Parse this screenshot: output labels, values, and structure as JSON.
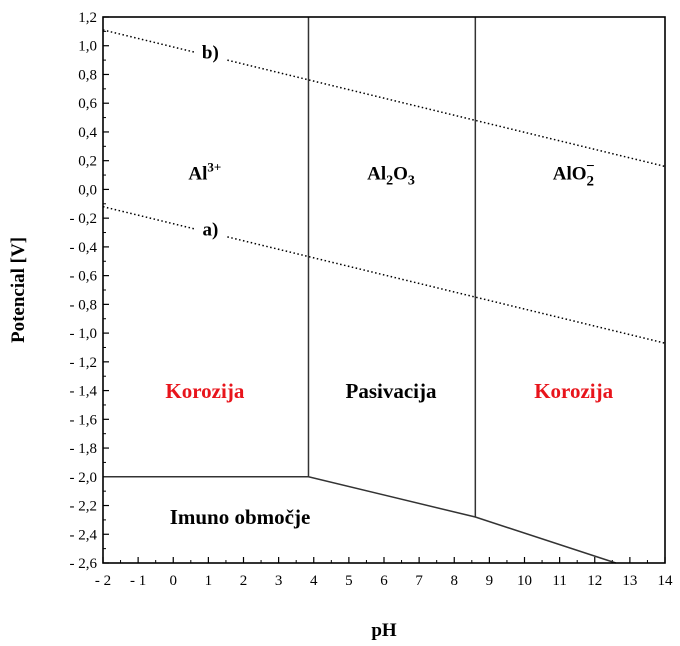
{
  "chart_data": {
    "type": "line",
    "xlabel": "pH",
    "ylabel": "Potencial [V]",
    "xlim": [
      -2,
      14
    ],
    "ylim": [
      -2.6,
      1.2
    ],
    "x_ticks": [
      -2,
      -1,
      0,
      1,
      2,
      3,
      4,
      5,
      6,
      7,
      8,
      9,
      10,
      11,
      12,
      13,
      14
    ],
    "x_tick_labels": [
      "- 2",
      "- 1",
      "0",
      "1",
      "2",
      "3",
      "4",
      "5",
      "6",
      "7",
      "8",
      "9",
      "10",
      "11",
      "12",
      "13",
      "14"
    ],
    "y_ticks": [
      1.2,
      1.0,
      0.8,
      0.6,
      0.4,
      0.2,
      0.0,
      -0.2,
      -0.4,
      -0.6,
      -0.8,
      -1.0,
      -1.2,
      -1.4,
      -1.6,
      -1.8,
      -2.0,
      -2.2,
      -2.4,
      -2.6
    ],
    "y_tick_labels": [
      "1,2",
      "1,0",
      "0,8",
      "0,6",
      "0,4",
      "0,2",
      "0,0",
      "- 0,2",
      "- 0,4",
      "- 0,6",
      "- 0,8",
      "- 1,0",
      "- 1,2",
      "- 1,4",
      "- 1,6",
      "- 1,8",
      "- 2,0",
      "- 2,2",
      "- 2,4",
      "- 2,6"
    ],
    "boundaries": [
      {
        "points": [
          [
            -2,
            -2.0
          ],
          [
            3.85,
            -2.0
          ],
          [
            8.6,
            -2.28
          ],
          [
            12.6,
            -2.6
          ]
        ]
      },
      {
        "points": [
          [
            3.85,
            -2.0
          ],
          [
            3.85,
            1.2
          ]
        ]
      },
      {
        "points": [
          [
            8.6,
            -2.28
          ],
          [
            8.6,
            1.2
          ]
        ]
      }
    ],
    "water_lines": [
      {
        "label": "a)",
        "style": "dotted",
        "points": [
          [
            -2,
            -0.12
          ],
          [
            14,
            -1.07
          ]
        ]
      },
      {
        "label": "b)",
        "style": "dotted",
        "points": [
          [
            -2,
            1.11
          ],
          [
            14,
            0.16
          ]
        ]
      }
    ],
    "species": [
      {
        "base": "Al",
        "sub": "",
        "sup": "3+",
        "x": 0.9,
        "y": 0.07
      },
      {
        "base": "Al",
        "sub": "2",
        "mid": "O",
        "sub2": "3",
        "x": 6.2,
        "y": 0.07
      },
      {
        "base": "AlO",
        "sub": "2",
        "sup": "−",
        "x": 11.4,
        "y": 0.07
      }
    ],
    "regions": [
      {
        "label": "Korozija",
        "color": "#e8141b",
        "x": 0.9,
        "y": -1.45
      },
      {
        "label": "Pasivacija",
        "color": "#000000",
        "x": 6.2,
        "y": -1.45
      },
      {
        "label": "Korozija",
        "color": "#e8141b",
        "x": 11.4,
        "y": -1.45
      },
      {
        "label": "Imuno območje",
        "color": "#000000",
        "x": 1.9,
        "y": -2.33
      }
    ]
  }
}
